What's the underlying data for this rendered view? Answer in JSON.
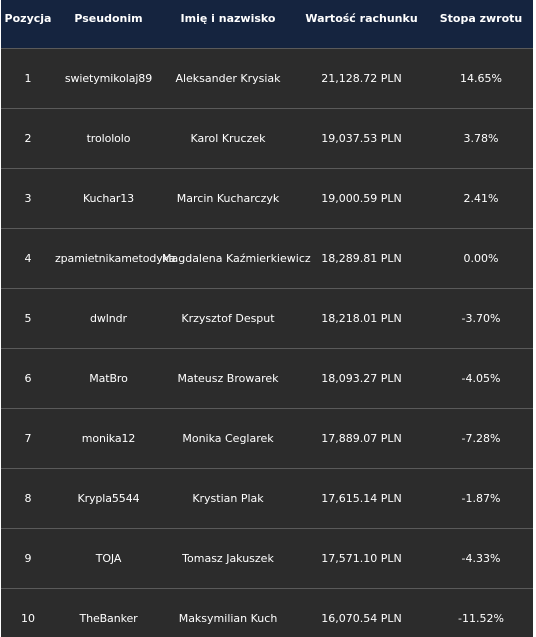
{
  "table": {
    "headers": [
      "Pozycja",
      "Pseudonim",
      "Imię i nazwisko",
      "Wartość rachunku",
      "Stopa zwrotu"
    ],
    "rows": [
      [
        "1",
        "swietymikolaj89",
        "Aleksander Krysiak",
        "21,128.72 PLN",
        "14.65%"
      ],
      [
        "2",
        "trolololo",
        "Karol Kruczek",
        "19,037.53 PLN",
        "3.78%"
      ],
      [
        "3",
        "Kuchar13",
        "Marcin Kucharczyk",
        "19,000.59 PLN",
        "2.41%"
      ],
      [
        "4",
        "zpamietnikametodyka",
        "Magdalena Kaźmierkiewicz",
        "18,289.81 PLN",
        "0.00%"
      ],
      [
        "5",
        "dwlndr",
        "Krzysztof Desput",
        "18,218.01 PLN",
        "-3.70%"
      ],
      [
        "6",
        "MatBro",
        "Mateusz Browarek",
        "18,093.27 PLN",
        "-4.05%"
      ],
      [
        "7",
        "monika12",
        "Monika Ceglarek",
        "17,889.07 PLN",
        "-7.28%"
      ],
      [
        "8",
        "Krypla5544",
        "Krystian Plak",
        "17,615.14 PLN",
        "-1.87%"
      ],
      [
        "9",
        "TOJA",
        "Tomasz Jakuszek",
        "17,571.10 PLN",
        "-4.33%"
      ],
      [
        "10",
        "TheBanker",
        "Maksymilian Kuch",
        "16,070.54 PLN",
        "-11.52%"
      ]
    ]
  },
  "colors": {
    "header_background": "#15243f",
    "body_background": "#2c2c2c",
    "row_divider": "#5a5a5a",
    "text": "#ffffff"
  }
}
